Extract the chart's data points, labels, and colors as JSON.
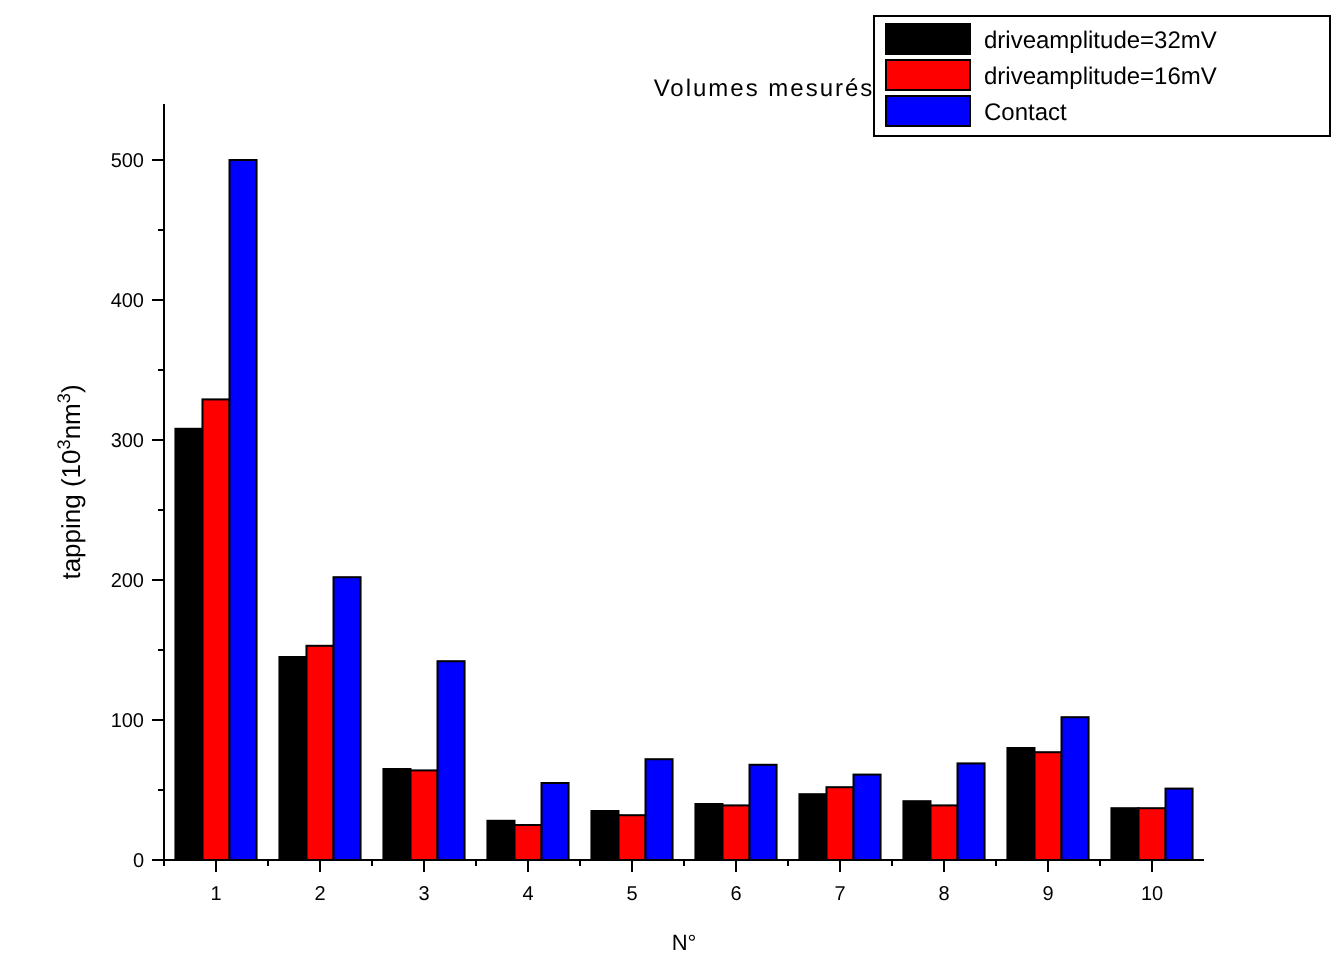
{
  "chart_data": {
    "type": "bar",
    "title": "Volumes mesurés",
    "xlabel": "N°",
    "ylabel": "tapping (10$^{3}$nm$^{3}$)",
    "categories": [
      "1",
      "2",
      "3",
      "4",
      "5",
      "6",
      "7",
      "8",
      "9",
      "10"
    ],
    "series": [
      {
        "name": "driveamplitude=32mV",
        "color": "#000000",
        "values": [
          308,
          145,
          65,
          28,
          35,
          40,
          47,
          42,
          80,
          37
        ]
      },
      {
        "name": "driveamplitude=16mV",
        "color": "#ff0000",
        "values": [
          329,
          153,
          64,
          25,
          32,
          39,
          52,
          39,
          77,
          37
        ]
      },
      {
        "name": "Contact",
        "color": "#0000ff",
        "values": [
          500,
          202,
          142,
          55,
          72,
          68,
          61,
          69,
          102,
          51
        ]
      }
    ],
    "ylim": [
      0,
      540
    ],
    "yticks": [
      0,
      {
        "value": 50,
        "label": null
      },
      100,
      {
        "value": 150,
        "label": null
      },
      200,
      {
        "value": 250,
        "label": null
      },
      300,
      {
        "value": 350,
        "label": null
      },
      400,
      {
        "value": 450,
        "label": null
      },
      500
    ],
    "grid": false,
    "legend": "top right"
  }
}
